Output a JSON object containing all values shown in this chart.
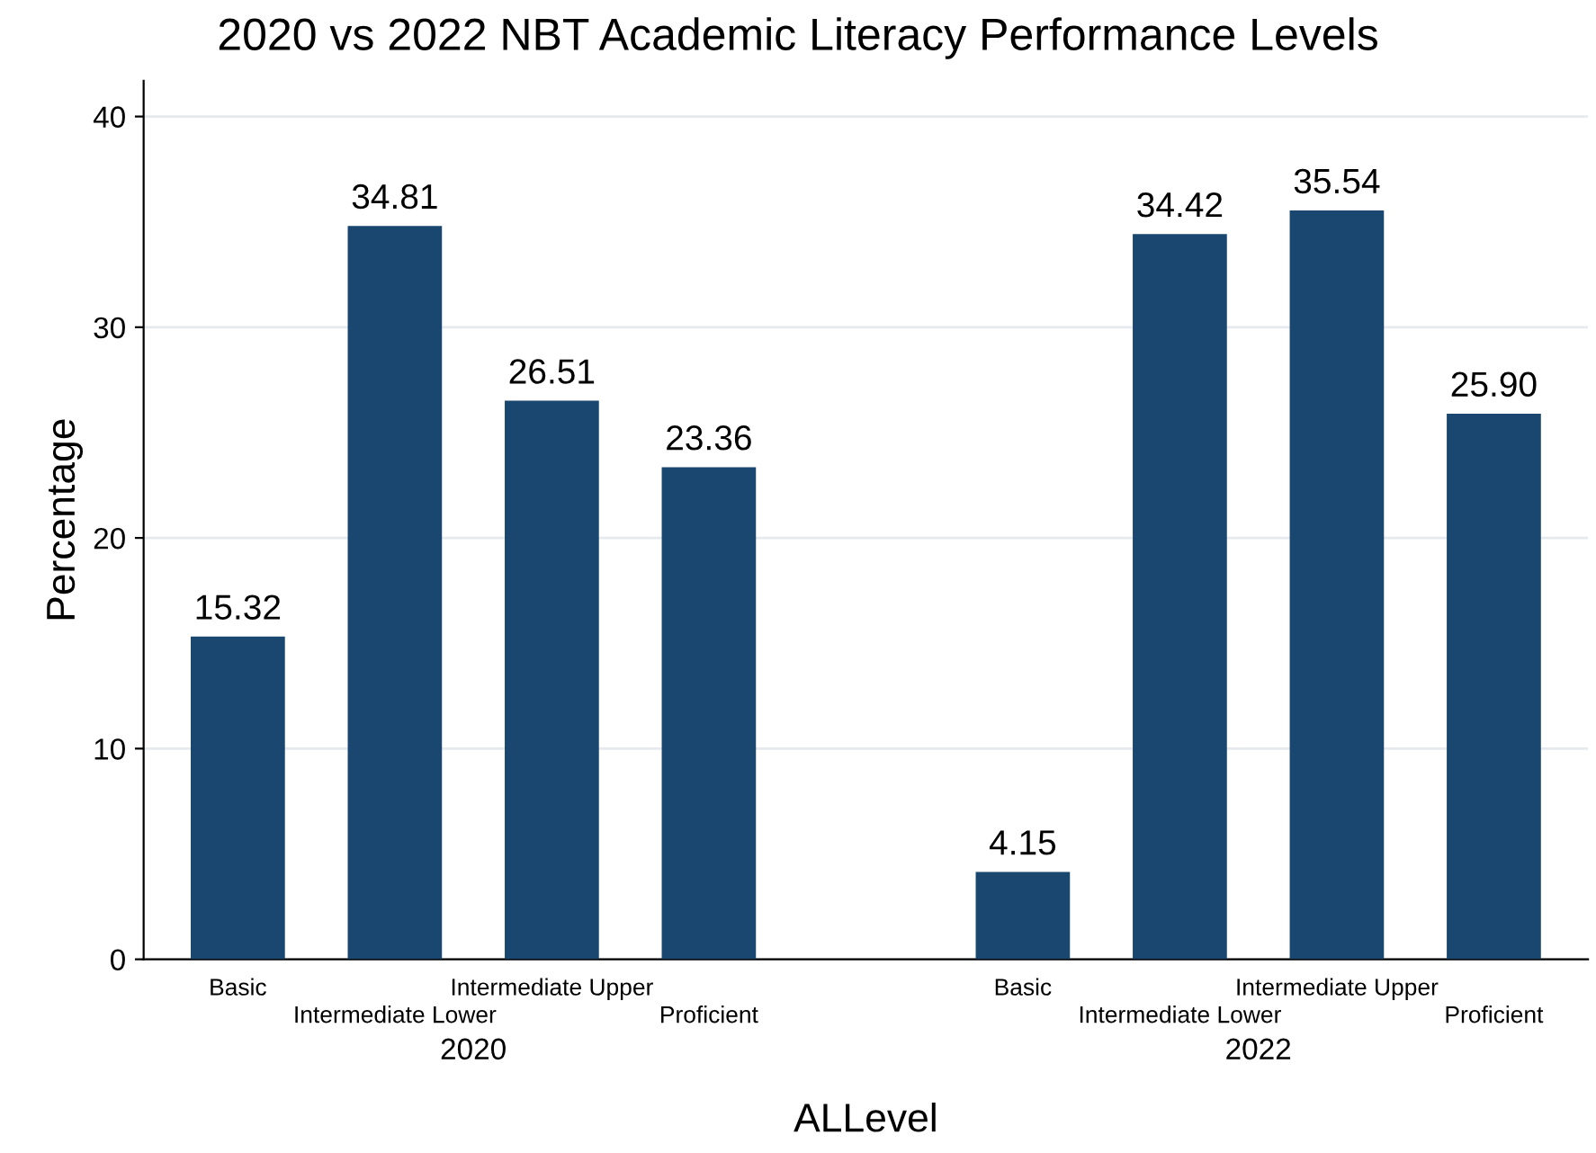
{
  "chart_data": {
    "type": "bar",
    "title": "2020 vs 2022 NBT Academic Literacy Performance Levels",
    "categories": [
      "Basic",
      "Intermediate Lower",
      "Intermediate Upper",
      "Proficient",
      null,
      "Basic",
      "Intermediate Lower",
      "Intermediate Upper",
      "Proficient"
    ],
    "values": [
      15.32,
      34.81,
      26.51,
      23.36,
      null,
      4.15,
      34.42,
      35.54,
      25.9
    ],
    "value_labels": [
      "15.32",
      "34.81",
      "26.51",
      "23.36",
      null,
      "4.15",
      "34.42",
      "35.54",
      "25.90"
    ],
    "color": "#1a476f",
    "annotations": [
      "2020",
      "2022"
    ],
    "xlabel": "ALLevel",
    "ylabel": "Percentage",
    "ylim": [
      0,
      41.7
    ],
    "yticks": [
      0,
      10,
      20,
      30,
      40
    ],
    "grid": "y",
    "legend": false
  }
}
